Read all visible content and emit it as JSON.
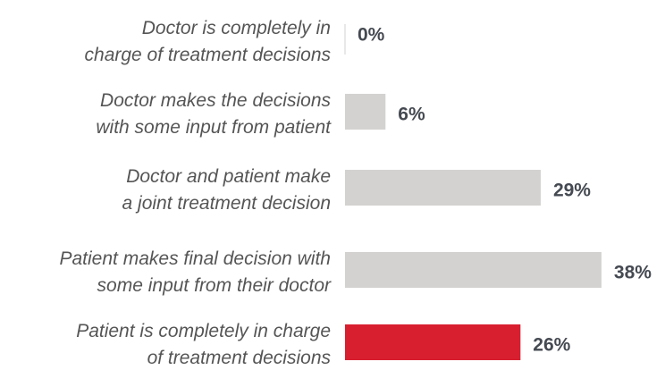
{
  "chart_data": {
    "type": "barh",
    "categories": [
      "Doctor is completely in\ncharge of treatment decisions",
      "Doctor makes the decisions\nwith some input from patient",
      "Doctor and patient make\na joint treatment decision",
      "Patient makes final decision with\nsome input from their doctor",
      "Patient is completely in charge\nof treatment decisions"
    ],
    "values": [
      0,
      6,
      29,
      38,
      26
    ],
    "value_labels": [
      "0%",
      "6%",
      "29%",
      "38%",
      "26%"
    ],
    "colors": [
      "#d3d2d0",
      "#d3d2d0",
      "#d3d2d0",
      "#d3d2d0",
      "#d71f30"
    ]
  }
}
